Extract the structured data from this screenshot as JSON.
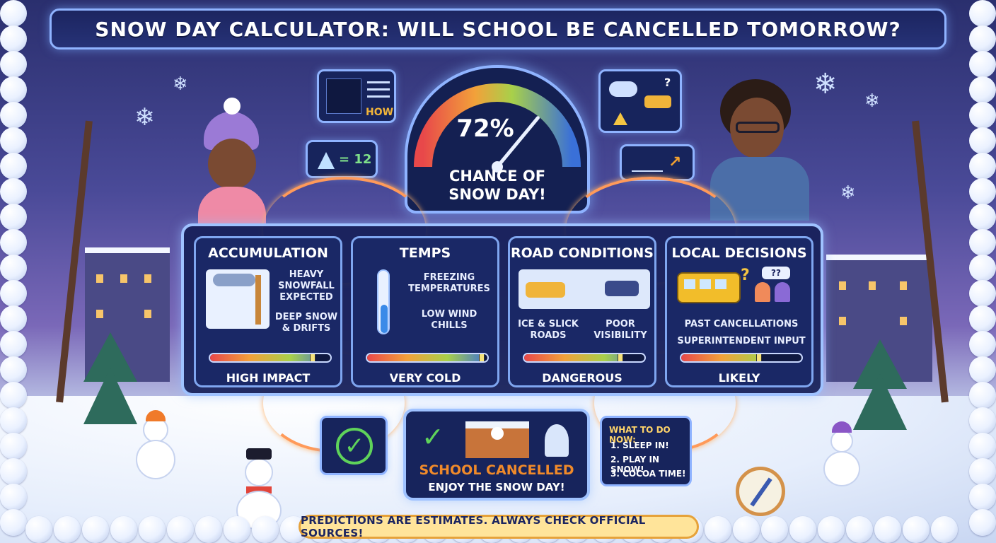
{
  "title": "SNOW DAY CALCULATOR: WILL SCHOOL BE CANCELLED TOMORROW?",
  "gauge": {
    "percent": "72%",
    "caption_line1": "CHANCE OF",
    "caption_line2": "SNOW DAY!",
    "value": 0.72
  },
  "side_cards": {
    "snowfall_label": "HOW",
    "depth_label": "= 12"
  },
  "factors": [
    {
      "title": "ACCUMULATION",
      "notes": [
        "HEAVY",
        "SNOWFALL",
        "EXPECTED",
        "DEEP SNOW",
        "& DRIFTS"
      ],
      "level": "HIGH IMPACT",
      "meter_value": 0.85
    },
    {
      "title": "TEMPS",
      "notes": [
        "FREEZING",
        "TEMPERATURES",
        "LOW WIND",
        "CHILLS"
      ],
      "level": "VERY COLD",
      "meter_value": 0.95
    },
    {
      "title": "ROAD CONDITIONS",
      "notes": [
        "ICE & SLICK",
        "ROADS",
        "POOR",
        "VISIBILITY"
      ],
      "level": "DANGEROUS",
      "meter_value": 0.8
    },
    {
      "title": "LOCAL DECISIONS",
      "notes": [
        "PAST CANCELLATIONS",
        "SUPERINTENDENT INPUT"
      ],
      "level": "LIKELY",
      "meter_value": 0.65
    }
  ],
  "result": {
    "title": "SCHOOL CANCELLED",
    "subtitle": "ENJOY THE SNOW DAY!"
  },
  "todo": {
    "heading": "WHAT TO DO NOW:",
    "items": [
      "1. SLEEP IN!",
      "2. PLAY IN SNOW!",
      "3. COCOA TIME!"
    ]
  },
  "disclaimer": "PREDICTIONS ARE ESTIMATES. ALWAYS CHECK OFFICIAL SOURCES!",
  "colors": {
    "accent": "#8fb3ff",
    "panel": "#17245c",
    "orange": "#f08a2a",
    "check": "#5fd35a"
  }
}
